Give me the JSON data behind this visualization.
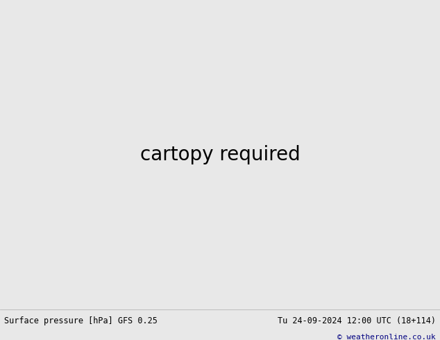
{
  "bottom_left_text": "Surface pressure [hPa] GFS 0.25",
  "bottom_right_text": "Tu 24-09-2024 12:00 UTC (18+114)",
  "bottom_copyright": "© weatheronline.co.uk",
  "ocean_color": "#c8d0d8",
  "land_color": "#b8d4a0",
  "gray_land_color": "#aaaaaa",
  "white_bg": "#dcdcdc",
  "contour_blue": "#0000cc",
  "contour_red": "#cc0000",
  "contour_black": "#000000",
  "fig_width": 6.34,
  "fig_height": 4.9,
  "dpi": 100,
  "text_color_dark": "#000000",
  "text_color_blue": "#000080",
  "bottom_bar_color": "#e8e8e8"
}
